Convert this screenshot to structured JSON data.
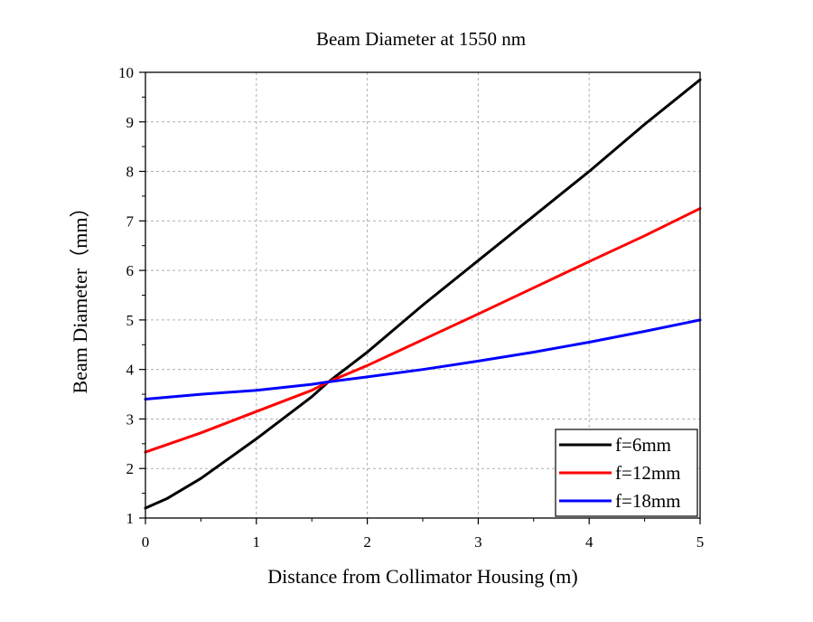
{
  "chart_data": {
    "type": "line",
    "title": "Beam Diameter at 1550 nm",
    "xlabel": "Distance from Collimator Housing (m)",
    "ylabel": "Beam Diameter（mm）",
    "xlim": [
      0,
      5
    ],
    "ylim": [
      1,
      10
    ],
    "xticks": [
      0,
      1,
      2,
      3,
      4,
      5
    ],
    "yticks": [
      1,
      2,
      3,
      4,
      5,
      6,
      7,
      8,
      9,
      10
    ],
    "grid": true,
    "legend_position": "bottom-right",
    "series": [
      {
        "name": "f=6mm",
        "color": "#000000",
        "x": [
          0,
          0.2,
          0.5,
          1,
          1.5,
          1.65,
          2,
          2.5,
          3,
          3.5,
          4,
          4.5,
          5
        ],
        "y": [
          1.2,
          1.4,
          1.8,
          2.6,
          3.45,
          3.75,
          4.35,
          5.3,
          6.2,
          7.1,
          8.0,
          8.95,
          9.85
        ]
      },
      {
        "name": "f=12mm",
        "color": "#ff0000",
        "x": [
          0,
          0.5,
          1,
          1.5,
          1.65,
          2,
          2.5,
          3,
          3.5,
          4,
          4.5,
          5
        ],
        "y": [
          2.33,
          2.72,
          3.15,
          3.58,
          3.75,
          4.08,
          4.6,
          5.12,
          5.65,
          6.18,
          6.7,
          7.25
        ]
      },
      {
        "name": "f=18mm",
        "color": "#0000ff",
        "x": [
          0,
          0.5,
          1,
          1.5,
          1.65,
          2,
          2.5,
          3,
          3.5,
          4,
          4.5,
          5
        ],
        "y": [
          3.4,
          3.5,
          3.58,
          3.7,
          3.75,
          3.85,
          4.0,
          4.17,
          4.35,
          4.55,
          4.77,
          5.0
        ]
      }
    ]
  }
}
